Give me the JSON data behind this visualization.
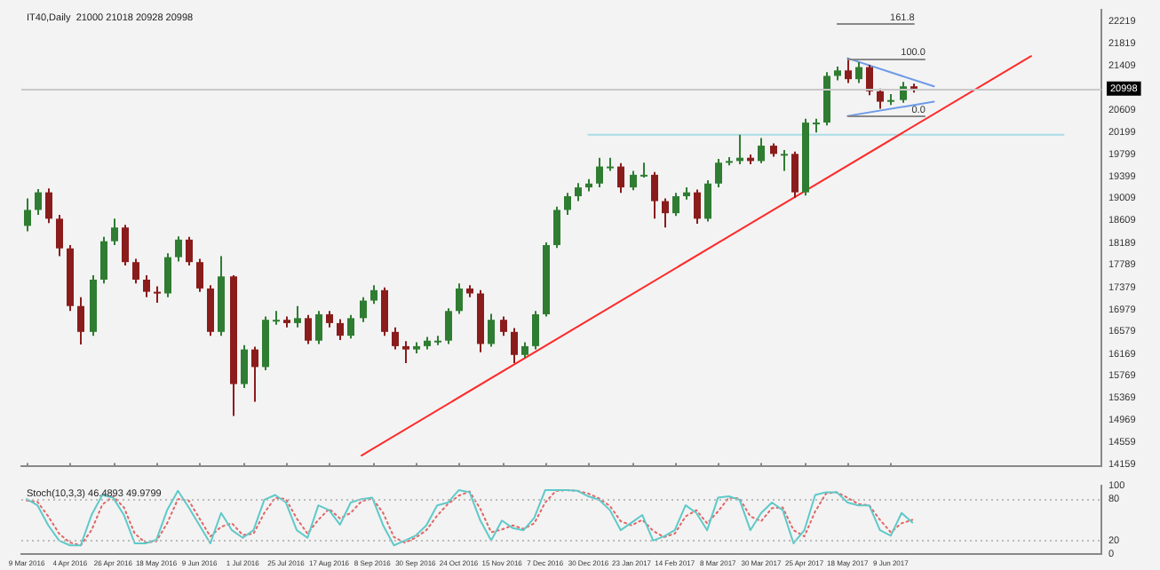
{
  "chart_data": [
    {
      "type": "candlestick",
      "title": "IT40,Daily  21000 21018 20928 20998",
      "tick_labels": "y",
      "categories": [
        "9 Mar 2016",
        null,
        null,
        null,
        "4 Apr 2016",
        null,
        null,
        null,
        "26 Apr 2016",
        null,
        null,
        null,
        "18 May 2016",
        null,
        null,
        null,
        "9 Jun 2016",
        null,
        null,
        null,
        "1 Jul 2016",
        null,
        null,
        null,
        "25 Jul 2016",
        null,
        null,
        null,
        "17 Aug 2016",
        null,
        null,
        null,
        "8 Sep 2016",
        null,
        null,
        null,
        "30 Sep 2016",
        null,
        null,
        null,
        "24 Oct 2016",
        null,
        null,
        null,
        "15 Nov 2016",
        null,
        null,
        null,
        "7 Dec 2016",
        null,
        null,
        null,
        "30 Dec 2016",
        null,
        null,
        null,
        "23 Jan 2017",
        null,
        null,
        null,
        "14 Feb 2017",
        null,
        null,
        null,
        "8 Mar 2017",
        null,
        null,
        null,
        "30 Mar 2017",
        null,
        null,
        null,
        "25 Apr 2017",
        null,
        null,
        null,
        "18 May 2017",
        null,
        null,
        null,
        "9 Jun 2017",
        null,
        null,
        null,
        null,
        null,
        null,
        null,
        null,
        null,
        null,
        null,
        null,
        null,
        null,
        null,
        null,
        null,
        null,
        null
      ],
      "ohlc": [
        [
          18500,
          19000,
          18400,
          18790
        ],
        [
          18790,
          19170,
          18700,
          19110
        ],
        [
          19110,
          19180,
          18550,
          18630
        ],
        [
          18630,
          18700,
          17950,
          18090
        ],
        [
          18090,
          18150,
          16950,
          17040
        ],
        [
          17040,
          17200,
          16340,
          16570
        ],
        [
          16570,
          17600,
          16500,
          17520
        ],
        [
          17520,
          18300,
          17450,
          18220
        ],
        [
          18220,
          18630,
          18150,
          18470
        ],
        [
          18470,
          18520,
          17780,
          17840
        ],
        [
          17840,
          17900,
          17450,
          17520
        ],
        [
          17520,
          17600,
          17200,
          17300
        ],
        [
          17300,
          17400,
          17100,
          17270
        ],
        [
          17270,
          18000,
          17200,
          17930
        ],
        [
          17930,
          18310,
          17850,
          18250
        ],
        [
          18250,
          18300,
          17780,
          17840
        ],
        [
          17840,
          17900,
          17300,
          17360
        ],
        [
          17360,
          17420,
          16500,
          16570
        ],
        [
          16570,
          17950,
          16500,
          17580
        ],
        [
          17580,
          17600,
          15040,
          15620
        ],
        [
          15620,
          16330,
          15550,
          16250
        ],
        [
          16250,
          16300,
          15300,
          15930
        ],
        [
          15930,
          16850,
          15870,
          16790
        ],
        [
          16790,
          16950,
          16700,
          16790
        ],
        [
          16790,
          16850,
          16650,
          16730
        ],
        [
          16730,
          17040,
          16650,
          16820
        ],
        [
          16820,
          16880,
          16350,
          16410
        ],
        [
          16410,
          16950,
          16350,
          16890
        ],
        [
          16890,
          16950,
          16650,
          16730
        ],
        [
          16730,
          16800,
          16420,
          16500
        ],
        [
          16500,
          16880,
          16450,
          16820
        ],
        [
          16820,
          17200,
          16750,
          17140
        ],
        [
          17140,
          17420,
          17080,
          17330
        ],
        [
          17330,
          17380,
          16500,
          16570
        ],
        [
          16570,
          16650,
          16250,
          16310
        ],
        [
          16310,
          16400,
          16000,
          16250
        ],
        [
          16250,
          16380,
          16180,
          16310
        ],
        [
          16310,
          16480,
          16250,
          16410
        ],
        [
          16410,
          16500,
          16330,
          16410
        ],
        [
          16410,
          17000,
          16350,
          16950
        ],
        [
          16950,
          17450,
          16900,
          17360
        ],
        [
          17360,
          17420,
          17200,
          17270
        ],
        [
          17270,
          17330,
          16200,
          16350
        ],
        [
          16350,
          16900,
          16300,
          16790
        ],
        [
          16790,
          16850,
          16500,
          16570
        ],
        [
          16570,
          16640,
          16000,
          16150
        ],
        [
          16150,
          16380,
          16100,
          16310
        ],
        [
          16310,
          16950,
          16250,
          16890
        ],
        [
          16890,
          18200,
          16850,
          18150
        ],
        [
          18150,
          18850,
          18100,
          18790
        ],
        [
          18790,
          19100,
          18700,
          19040
        ],
        [
          19040,
          19280,
          18950,
          19200
        ],
        [
          19200,
          19350,
          19130,
          19270
        ],
        [
          19270,
          19740,
          19200,
          19580
        ],
        [
          19580,
          19740,
          19500,
          19580
        ],
        [
          19580,
          19640,
          19100,
          19200
        ],
        [
          19200,
          19500,
          19150,
          19430
        ],
        [
          19430,
          19650,
          19380,
          19430
        ],
        [
          19430,
          19480,
          18630,
          18950
        ],
        [
          18950,
          19000,
          18470,
          18730
        ],
        [
          18730,
          19100,
          18680,
          19040
        ],
        [
          19040,
          19200,
          18980,
          19110
        ],
        [
          19110,
          19160,
          18540,
          18630
        ],
        [
          18630,
          19330,
          18580,
          19270
        ],
        [
          19270,
          19720,
          19200,
          19650
        ],
        [
          19650,
          19750,
          19600,
          19680
        ],
        [
          19680,
          20160,
          19620,
          19740
        ],
        [
          19740,
          19800,
          19620,
          19680
        ],
        [
          19680,
          20100,
          19640,
          19960
        ],
        [
          19960,
          20000,
          19760,
          19810
        ],
        [
          19810,
          19880,
          19500,
          19810
        ],
        [
          19810,
          19850,
          19010,
          19110
        ],
        [
          19110,
          20450,
          19050,
          20380
        ],
        [
          20380,
          20450,
          20200,
          20380
        ],
        [
          20380,
          21300,
          20330,
          21230
        ],
        [
          21230,
          21400,
          21150,
          21330
        ],
        [
          21330,
          21550,
          21100,
          21170
        ],
        [
          21170,
          21480,
          21100,
          21390
        ],
        [
          21390,
          21430,
          20880,
          20950
        ],
        [
          20950,
          21000,
          20630,
          20760
        ],
        [
          20760,
          20900,
          20700,
          20790
        ],
        [
          20790,
          21120,
          20740,
          21040
        ],
        [
          21040,
          21090,
          20928,
          20998
        ],
        null,
        null,
        null,
        null,
        null,
        null,
        null,
        null,
        null,
        null,
        null,
        null,
        null,
        null,
        null,
        null,
        null
      ],
      "series": [
        {
          "type": "line",
          "color": "#ff2a2a",
          "values": [
            null,
            null,
            null,
            null,
            null,
            null,
            null,
            null,
            null,
            null,
            null,
            null,
            null,
            null,
            null,
            null,
            null,
            null,
            null,
            null,
            null,
            null,
            null,
            null,
            null,
            null,
            null,
            null,
            null,
            null,
            null,
            14320,
            null,
            null,
            null,
            null,
            null,
            null,
            null,
            null,
            null,
            null,
            null,
            null,
            null,
            null,
            null,
            null,
            null,
            null,
            null,
            null,
            null,
            null,
            null,
            null,
            null,
            null,
            null,
            null,
            null,
            null,
            null,
            null,
            null,
            null,
            null,
            null,
            null,
            null,
            null,
            null,
            null,
            null,
            null,
            null,
            null,
            null,
            null,
            null,
            null,
            null,
            null,
            null,
            null,
            null,
            null,
            null,
            null,
            null,
            null,
            null,
            null,
            21590,
            null,
            null,
            null,
            null,
            null,
            null
          ]
        },
        {
          "type": "line",
          "color": "#6c9be8",
          "values": [
            null,
            null,
            null,
            null,
            null,
            null,
            null,
            null,
            null,
            null,
            null,
            null,
            null,
            null,
            null,
            null,
            null,
            null,
            null,
            null,
            null,
            null,
            null,
            null,
            null,
            null,
            null,
            null,
            null,
            null,
            null,
            null,
            null,
            null,
            null,
            null,
            null,
            null,
            null,
            null,
            null,
            null,
            null,
            null,
            null,
            null,
            null,
            null,
            null,
            null,
            null,
            null,
            null,
            null,
            null,
            null,
            null,
            null,
            null,
            null,
            null,
            null,
            null,
            null,
            null,
            null,
            null,
            null,
            null,
            null,
            null,
            null,
            null,
            null,
            null,
            null,
            21550,
            null,
            null,
            null,
            null,
            null,
            null,
            null,
            21040,
            null,
            null,
            null,
            null,
            null,
            null,
            null,
            null,
            null,
            null,
            null,
            null,
            null,
            null,
            null
          ]
        },
        {
          "type": "line",
          "color": "#6c9be8",
          "values": [
            null,
            null,
            null,
            null,
            null,
            null,
            null,
            null,
            null,
            null,
            null,
            null,
            null,
            null,
            null,
            null,
            null,
            null,
            null,
            null,
            null,
            null,
            null,
            null,
            null,
            null,
            null,
            null,
            null,
            null,
            null,
            null,
            null,
            null,
            null,
            null,
            null,
            null,
            null,
            null,
            null,
            null,
            null,
            null,
            null,
            null,
            null,
            null,
            null,
            null,
            null,
            null,
            null,
            null,
            null,
            null,
            null,
            null,
            null,
            null,
            null,
            null,
            null,
            null,
            null,
            null,
            null,
            null,
            null,
            null,
            null,
            null,
            null,
            null,
            null,
            null,
            20500,
            null,
            null,
            null,
            null,
            null,
            null,
            null,
            20760,
            null,
            null,
            null,
            null,
            null,
            null,
            null,
            null,
            null,
            null,
            null,
            null,
            null,
            null,
            null
          ]
        },
        {
          "type": "line",
          "color": "#a8dde6",
          "values": [
            null,
            null,
            null,
            null,
            null,
            null,
            null,
            null,
            null,
            null,
            null,
            null,
            null,
            null,
            null,
            null,
            null,
            null,
            null,
            null,
            null,
            null,
            null,
            null,
            null,
            null,
            null,
            null,
            null,
            null,
            null,
            null,
            null,
            null,
            null,
            null,
            null,
            null,
            null,
            null,
            null,
            null,
            null,
            null,
            null,
            null,
            null,
            null,
            null,
            null,
            null,
            null,
            20160,
            null,
            null,
            null,
            null,
            null,
            null,
            null,
            null,
            null,
            null,
            null,
            null,
            null,
            null,
            null,
            null,
            null,
            null,
            null,
            null,
            null,
            null,
            null,
            null,
            null,
            null,
            null,
            null,
            null,
            null,
            null,
            null,
            null,
            null,
            null,
            null,
            null,
            null,
            null,
            null,
            null,
            null,
            null,
            20160,
            null,
            null,
            null
          ]
        }
      ],
      "ylim": [
        14120,
        22440
      ],
      "yticks": [
        22219,
        21819,
        21409,
        20609,
        20199,
        19799,
        19399,
        19009,
        18609,
        18189,
        17789,
        17379,
        16979,
        16579,
        16169,
        15769,
        15369,
        14969,
        14559,
        14159
      ],
      "ref_lines": [
        {
          "axis": "y",
          "value": 20998,
          "label": "20998",
          "color": "#c8c8c8"
        }
      ],
      "annotations": [
        "161.8",
        {
          "text": "100.0",
          "x": "18 May 2017",
          "y": 21550
        },
        {
          "text": "0.0",
          "x": "18 May 2017",
          "y": 20500
        }
      ]
    },
    {
      "type": "line",
      "title": "Stoch(10,3,3) 46.4893 49.9799",
      "categories": [
        "9 Mar 2016",
        null,
        null,
        null,
        "4 Apr 2016",
        null,
        null,
        null,
        "26 Apr 2016",
        null,
        null,
        null,
        "18 May 2016",
        null,
        null,
        null,
        "9 Jun 2016",
        null,
        null,
        null,
        "1 Jul 2016",
        null,
        null,
        null,
        "25 Jul 2016",
        null,
        null,
        null,
        "17 Aug 2016",
        null,
        null,
        null,
        "8 Sep 2016",
        null,
        null,
        null,
        "30 Sep 2016",
        null,
        null,
        null,
        "24 Oct 2016",
        null,
        null,
        null,
        "15 Nov 2016",
        null,
        null,
        null,
        "7 Dec 2016",
        null,
        null,
        null,
        "30 Dec 2016",
        null,
        null,
        null,
        "23 Jan 2017",
        null,
        null,
        null,
        "14 Feb 2017",
        null,
        null,
        null,
        "8 Mar 2017",
        null,
        null,
        null,
        "30 Mar 2017",
        null,
        null,
        null,
        "25 Apr 2017",
        null,
        null,
        null,
        "18 May 2017",
        null,
        null,
        null,
        "9 Jun 2017",
        null,
        null,
        null,
        null,
        null,
        null,
        null,
        null,
        null,
        null,
        null,
        null,
        null,
        null,
        null,
        null,
        null,
        null,
        null
      ],
      "series": [
        {
          "color": "#5fc9c9",
          "line_style": "solid",
          "values": [
            80,
            71,
            42,
            20,
            13,
            13,
            57,
            86,
            82,
            57,
            16,
            16,
            21,
            64,
            92,
            68,
            42,
            16,
            60,
            35,
            24,
            35,
            79,
            86,
            75,
            35,
            24,
            71,
            64,
            43,
            75,
            80,
            82,
            42,
            13,
            20,
            27,
            42,
            71,
            75,
            93,
            90,
            49,
            20,
            49,
            38,
            35,
            53,
            93,
            93,
            93,
            92,
            84,
            79,
            64,
            35,
            46,
            57,
            20,
            26,
            35,
            71,
            60,
            35,
            82,
            84,
            79,
            35,
            60,
            75,
            64,
            16,
            35,
            86,
            90,
            90,
            75,
            71,
            71,
            35,
            27,
            60,
            46,
            null,
            null,
            null,
            null,
            null,
            null,
            null,
            null,
            null,
            null,
            null,
            null,
            null,
            null,
            null,
            null,
            null
          ]
        },
        {
          "color": "#e06666",
          "line_style": "dotted",
          "values": [
            78,
            76,
            55,
            30,
            17,
            13,
            35,
            72,
            84,
            68,
            30,
            17,
            19,
            45,
            80,
            78,
            52,
            26,
            40,
            45,
            28,
            30,
            60,
            82,
            80,
            52,
            30,
            50,
            66,
            52,
            60,
            77,
            81,
            60,
            25,
            17,
            24,
            35,
            56,
            73,
            85,
            91,
            66,
            32,
            36,
            42,
            37,
            45,
            75,
            92,
            93,
            92,
            88,
            81,
            70,
            48,
            42,
            50,
            34,
            25,
            30,
            55,
            64,
            45,
            62,
            82,
            81,
            55,
            48,
            67,
            68,
            35,
            26,
            62,
            88,
            90,
            82,
            73,
            71,
            50,
            32,
            45,
            50,
            null,
            null,
            null,
            null,
            null,
            null,
            null,
            null,
            null,
            null,
            null,
            null,
            null,
            null,
            null,
            null,
            null
          ]
        }
      ],
      "ylim": [
        0,
        100
      ],
      "yticks": [
        0,
        20,
        80,
        100
      ],
      "ref_lines": [
        {
          "axis": "y",
          "value": 20,
          "color": "#bbbbbb",
          "line_style": "dotted"
        },
        {
          "axis": "y",
          "value": 80,
          "color": "#bbbbbb",
          "line_style": "dotted"
        }
      ]
    }
  ]
}
